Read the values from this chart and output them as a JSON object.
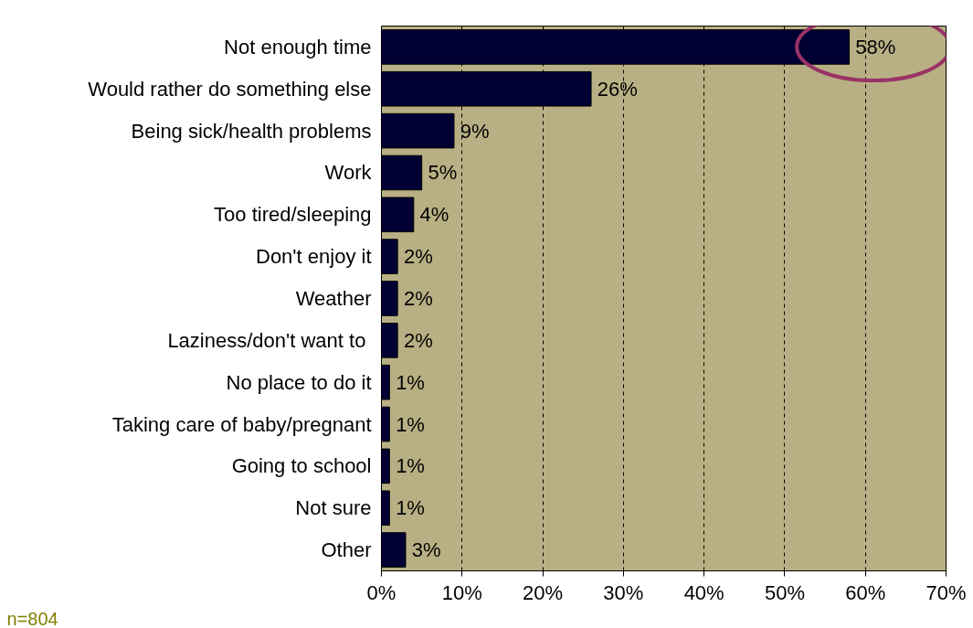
{
  "chart_data": {
    "type": "bar",
    "orientation": "horizontal",
    "categories": [
      "Not enough time",
      "Would rather do something else",
      "Being sick/health problems",
      "Work",
      "Too tired/sleeping",
      "Don't enjoy it",
      "Weather",
      "Laziness/don't want to ",
      "No place to do it",
      "Taking care of baby/pregnant",
      "Going to school",
      "Not sure",
      "Other"
    ],
    "values": [
      58,
      26,
      9,
      5,
      4,
      2,
      2,
      2,
      1,
      1,
      1,
      1,
      3
    ],
    "value_labels": [
      "58%",
      "26%",
      "9%",
      "5%",
      "4%",
      "2%",
      "2%",
      "2%",
      "1%",
      "1%",
      "1%",
      "1%",
      "3%"
    ],
    "color": "#000033",
    "xlim": [
      0,
      70
    ],
    "xticks": [
      {
        "value": 0,
        "label": "0%"
      },
      {
        "value": 10,
        "label": "10%"
      },
      {
        "value": 20,
        "label": "20%"
      },
      {
        "value": 30,
        "label": "30%"
      },
      {
        "value": 40,
        "label": "40%"
      },
      {
        "value": 50,
        "label": "50%"
      },
      {
        "value": 60,
        "label": "60%"
      },
      {
        "value": 70,
        "label": "70%"
      }
    ],
    "grid": "x",
    "annotations": [
      "n=804"
    ]
  }
}
